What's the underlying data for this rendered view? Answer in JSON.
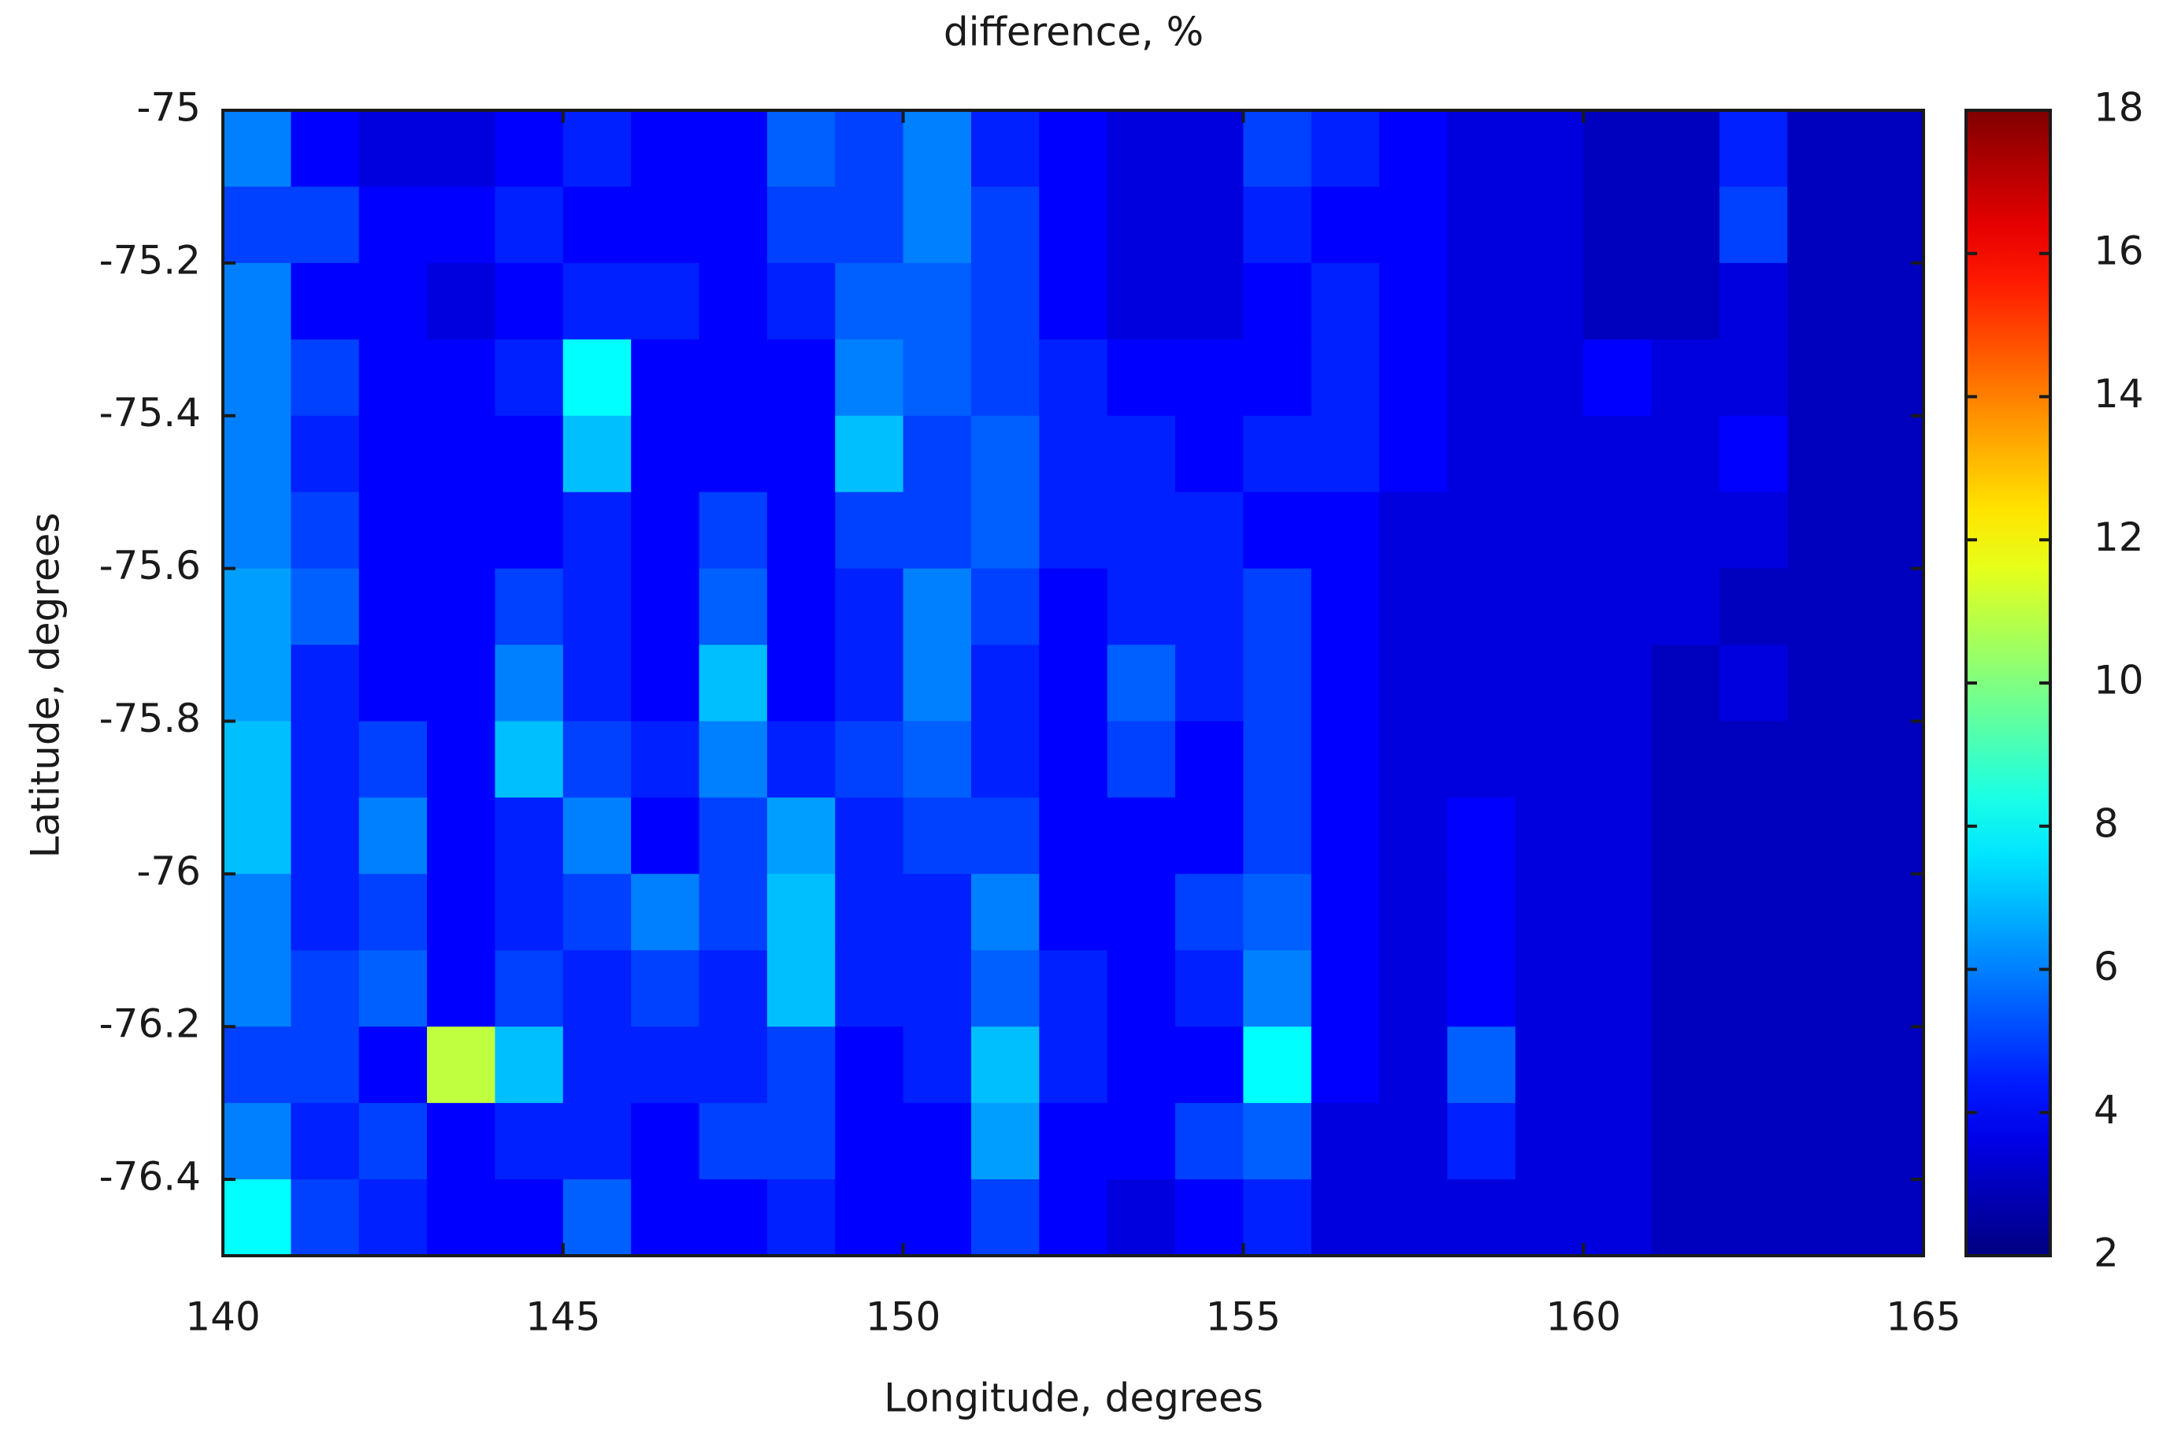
{
  "chart_data": {
    "type": "heatmap",
    "title": "difference, %",
    "x_label": "Longitude, degrees",
    "y_label": "Latitude, degrees",
    "xlim": [
      140,
      165
    ],
    "xticks": [
      140,
      145,
      150,
      155,
      160,
      165
    ],
    "ylim": [
      -76.5,
      -75
    ],
    "yticks": [
      -75,
      -75.2,
      -75.4,
      -75.6,
      -75.8,
      -76,
      -76.2,
      -76.4
    ],
    "zlim": [
      2,
      18
    ],
    "zticks": [
      2,
      4,
      6,
      8,
      10,
      12,
      14,
      16,
      18
    ],
    "colormap": "jet",
    "x": [
      140.5,
      141.5,
      142.5,
      143.5,
      144.5,
      145.5,
      146.5,
      147.5,
      148.5,
      149.5,
      150.5,
      151.5,
      152.5,
      153.5,
      154.5,
      155.5,
      156.5,
      157.5,
      158.5,
      159.5,
      160.5,
      161.5,
      162.5,
      163.5,
      164.5
    ],
    "y": [
      -75.05,
      -75.15,
      -75.25,
      -75.35,
      -75.45,
      -75.55,
      -75.65,
      -75.75,
      -75.85,
      -75.95,
      -76.05,
      -76.15,
      -76.25,
      -76.35,
      -76.45
    ],
    "z": [
      [
        6,
        4,
        3.5,
        3.5,
        4,
        4.5,
        4,
        4,
        5.5,
        5,
        6,
        4.5,
        4,
        3.5,
        3.5,
        5,
        4.5,
        4,
        3.5,
        3.5,
        3,
        3,
        4.5,
        3,
        3
      ],
      [
        5,
        5,
        4,
        4,
        4.5,
        4,
        4,
        4,
        5,
        5,
        6,
        5,
        4,
        3.5,
        3.5,
        4.5,
        4,
        4,
        3.5,
        3.5,
        3,
        3,
        5,
        3,
        3
      ],
      [
        6,
        4,
        4,
        3.5,
        4,
        4.5,
        4.5,
        4,
        4.5,
        5.5,
        5.5,
        5,
        4,
        3.5,
        3.5,
        4,
        4.5,
        4,
        3.5,
        3.5,
        3,
        3,
        3.5,
        3,
        3
      ],
      [
        6,
        5,
        4,
        4,
        4.5,
        8,
        4,
        4,
        4,
        6,
        5.5,
        5,
        4.5,
        4,
        4,
        4,
        4.5,
        4,
        3.5,
        3.5,
        4,
        3.5,
        3.5,
        3,
        3
      ],
      [
        6,
        4.5,
        4,
        4,
        4,
        7,
        4,
        4,
        4,
        7,
        5,
        5.5,
        4.5,
        4.5,
        4,
        4.5,
        4.5,
        4,
        3.5,
        3.5,
        3.5,
        3.5,
        4,
        3,
        3
      ],
      [
        6,
        5,
        4,
        4,
        4,
        4.5,
        4,
        5,
        4,
        5,
        5,
        5.5,
        4.5,
        4.5,
        4.5,
        4,
        4,
        3.5,
        3.5,
        3.5,
        3.5,
        3.5,
        3.5,
        3,
        3
      ],
      [
        6.5,
        5.5,
        4,
        4,
        5,
        4.5,
        4,
        5.5,
        4,
        4.5,
        6,
        5,
        4,
        4.5,
        4.5,
        5,
        4,
        3.5,
        3.5,
        3.5,
        3.5,
        3.5,
        3,
        3,
        3
      ],
      [
        6.5,
        4.5,
        4,
        4,
        6,
        4.5,
        4,
        7,
        4,
        4.5,
        6,
        4.5,
        4,
        5.5,
        4.5,
        5,
        4,
        3.5,
        3.5,
        3.5,
        3.5,
        3,
        3.5,
        3,
        3
      ],
      [
        7,
        4.5,
        5,
        4,
        7,
        5,
        4.5,
        6,
        4.5,
        5,
        5.5,
        4.5,
        4,
        5,
        4,
        5,
        4,
        3.5,
        3.5,
        3.5,
        3.5,
        3,
        3,
        3,
        3
      ],
      [
        7,
        4.5,
        6,
        4,
        4.5,
        6,
        4,
        5,
        6.5,
        4.5,
        5,
        5,
        4,
        4,
        4,
        5,
        4,
        3.5,
        4,
        3.5,
        3.5,
        3,
        3,
        3,
        3
      ],
      [
        6,
        4.5,
        5,
        4,
        4.5,
        5,
        6,
        5,
        7,
        4.5,
        4.5,
        6,
        4,
        4,
        5,
        5.5,
        4,
        3.5,
        4,
        3.5,
        3.5,
        3,
        3,
        3,
        3
      ],
      [
        6,
        5,
        5.5,
        4,
        5,
        4.5,
        5,
        4.5,
        7,
        4.5,
        4.5,
        5.5,
        4.5,
        4,
        4.5,
        6,
        4,
        3.5,
        4,
        3.5,
        3.5,
        3,
        3,
        3,
        3
      ],
      [
        5,
        5,
        4,
        11,
        7,
        4.5,
        4.5,
        4.5,
        5,
        4,
        4.5,
        7,
        4.5,
        4,
        4,
        8,
        4,
        3.5,
        5.5,
        3.5,
        3.5,
        3,
        3,
        3,
        3
      ],
      [
        6,
        4.5,
        5,
        4,
        4.5,
        4.5,
        4,
        5,
        5,
        4,
        4,
        6.5,
        4,
        4,
        5,
        5.5,
        3.5,
        3.5,
        4.5,
        3.5,
        3.5,
        3,
        3,
        3,
        3
      ],
      [
        8,
        5,
        4.5,
        4,
        4,
        5.5,
        4,
        4,
        4.5,
        4,
        4,
        5,
        4,
        3.5,
        4,
        4.5,
        3.5,
        3.5,
        3.5,
        3.5,
        3.5,
        3,
        3,
        3,
        3
      ]
    ]
  }
}
